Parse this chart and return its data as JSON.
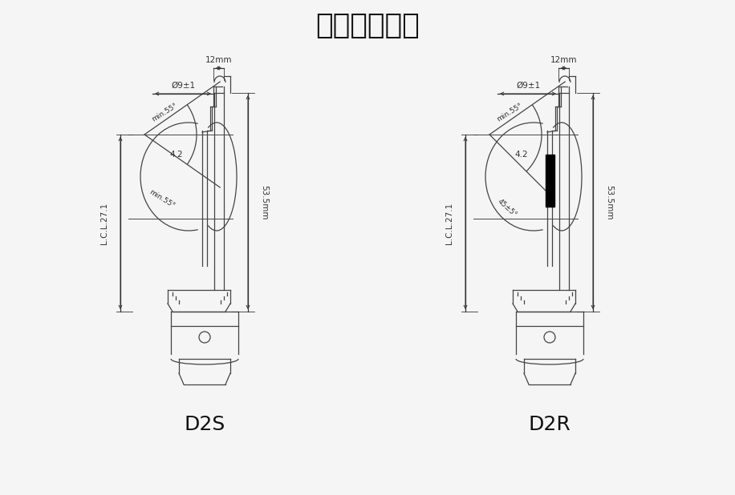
{
  "title": "バルブサイズ",
  "title_fontsize": 26,
  "label_d2s": "D2S",
  "label_d2r": "D2R",
  "bg_color": "#f5f5f5",
  "line_color": "#444444",
  "dim_color": "#333333",
  "black_color": "#111111",
  "dim_12mm": "12mm",
  "dim_09": "Ø9±1",
  "dim_42": "4.2",
  "dim_535": "53.5mm",
  "dim_lcl": "L.C.L.27.1",
  "dim_min55_top": "min.55°",
  "dim_min55_bot": "min.55°",
  "dim_45": "45±5°"
}
